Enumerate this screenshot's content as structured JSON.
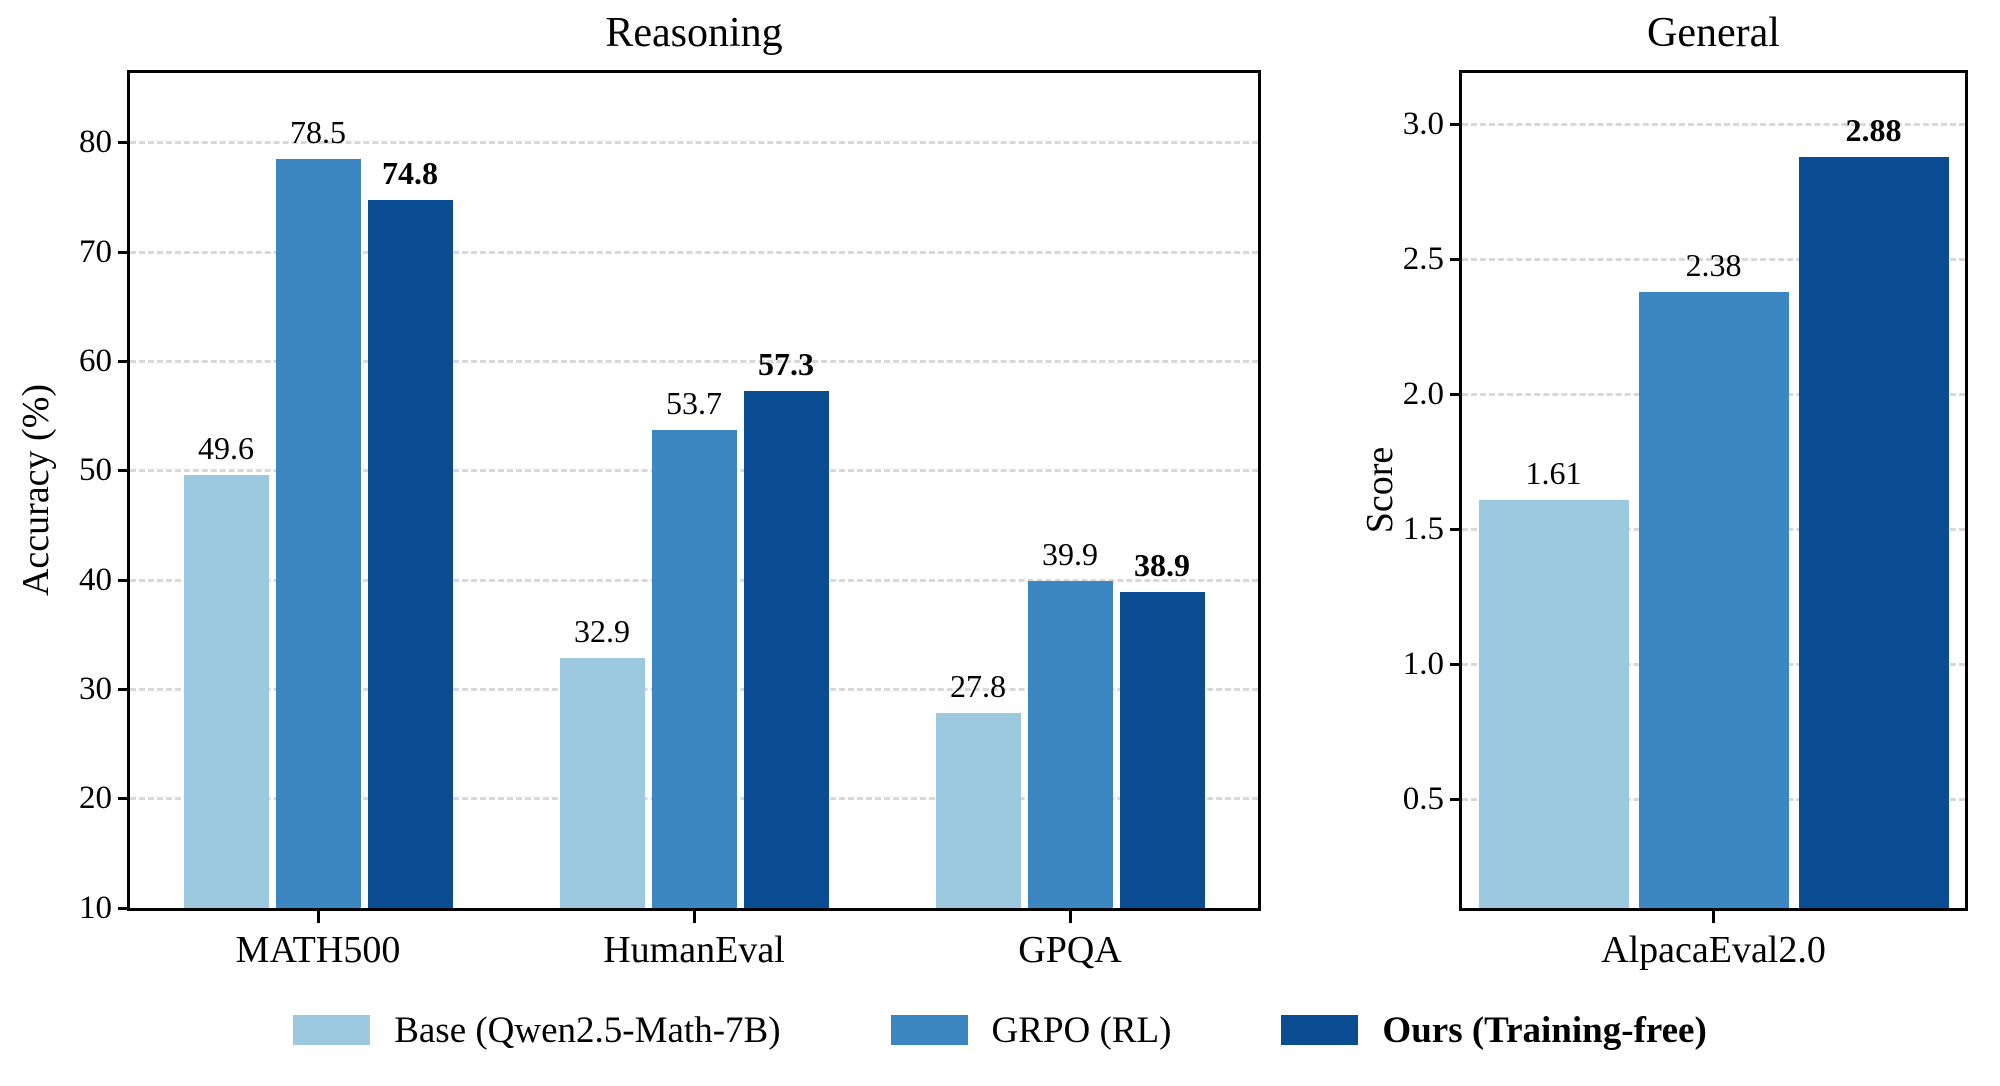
{
  "chart_data": [
    {
      "type": "bar",
      "title": "Reasoning",
      "ylabel": "Accuracy (%)",
      "categories": [
        "MATH500",
        "HumanEval",
        "GPQA"
      ],
      "series": [
        {
          "name": "Base (Qwen2.5-Math-7B)",
          "color": "#9CC8E0",
          "bold": false,
          "values": [
            49.6,
            32.9,
            27.8
          ]
        },
        {
          "name": "GRPO (RL)",
          "color": "#3C87C1",
          "bold": false,
          "values": [
            78.5,
            53.7,
            39.9
          ]
        },
        {
          "name": "Ours (Training-free)",
          "color": "#0A4D93",
          "bold": true,
          "values": [
            74.8,
            57.3,
            38.9
          ]
        }
      ],
      "yticks": [
        10,
        20,
        30,
        40,
        50,
        60,
        70,
        80
      ],
      "ylim": [
        10,
        86.4
      ],
      "tick_decimals": 0,
      "value_decimals": 1,
      "grid": true,
      "grid_style": "dashed",
      "legend_position": "bottom-center"
    },
    {
      "type": "bar",
      "title": "General",
      "ylabel": "Score",
      "categories": [
        "AlpacaEval2.0"
      ],
      "series": [
        {
          "name": "Base (Qwen2.5-Math-7B)",
          "color": "#9CC8E0",
          "bold": false,
          "values": [
            1.61
          ]
        },
        {
          "name": "GRPO (RL)",
          "color": "#3C87C1",
          "bold": false,
          "values": [
            2.38
          ]
        },
        {
          "name": "Ours (Training-free)",
          "color": "#0A4D93",
          "bold": true,
          "values": [
            2.88
          ]
        }
      ],
      "yticks": [
        0.5,
        1.0,
        1.5,
        2.0,
        2.5,
        3.0
      ],
      "ylim": [
        0.1,
        3.19
      ],
      "tick_decimals": 1,
      "value_decimals": 2,
      "grid": true,
      "grid_style": "dashed",
      "legend_position": "bottom-center"
    }
  ],
  "legend": {
    "items": [
      {
        "label": "Base (Qwen2.5-Math-7B)",
        "color": "#9CC8E0",
        "bold": false
      },
      {
        "label": "GRPO (RL)",
        "color": "#3C87C1",
        "bold": false
      },
      {
        "label": "Ours (Training-free)",
        "color": "#0A4D93",
        "bold": true
      }
    ]
  }
}
